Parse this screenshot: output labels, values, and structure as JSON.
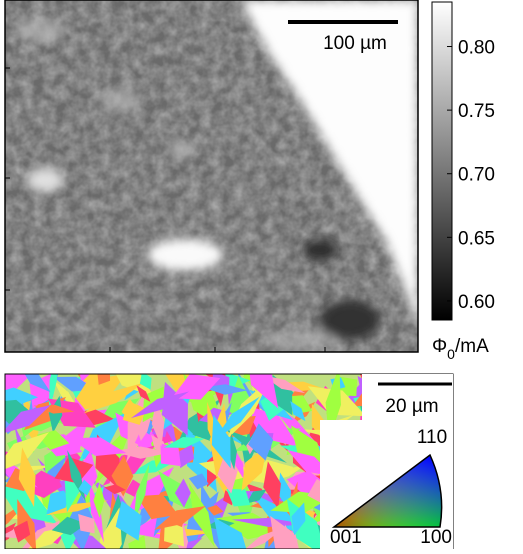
{
  "top_map": {
    "scale_bar": "100 µm"
  },
  "colorbar": {
    "lim": [
      0.585,
      0.835
    ],
    "ticks": [
      {
        "value": 0.8,
        "label": "0.80"
      },
      {
        "value": 0.75,
        "label": "0.75"
      },
      {
        "value": 0.7,
        "label": "0.70"
      },
      {
        "value": 0.65,
        "label": "0.65"
      },
      {
        "value": 0.6,
        "label": "0.60"
      }
    ],
    "label": {
      "symbol": "Φ",
      "subscript": "0",
      "unit": "/mA"
    }
  },
  "bottom_map": {
    "scale_bar": "20 µm",
    "ipf_labels": {
      "top": "110",
      "left": "001",
      "right": "100"
    }
  }
}
